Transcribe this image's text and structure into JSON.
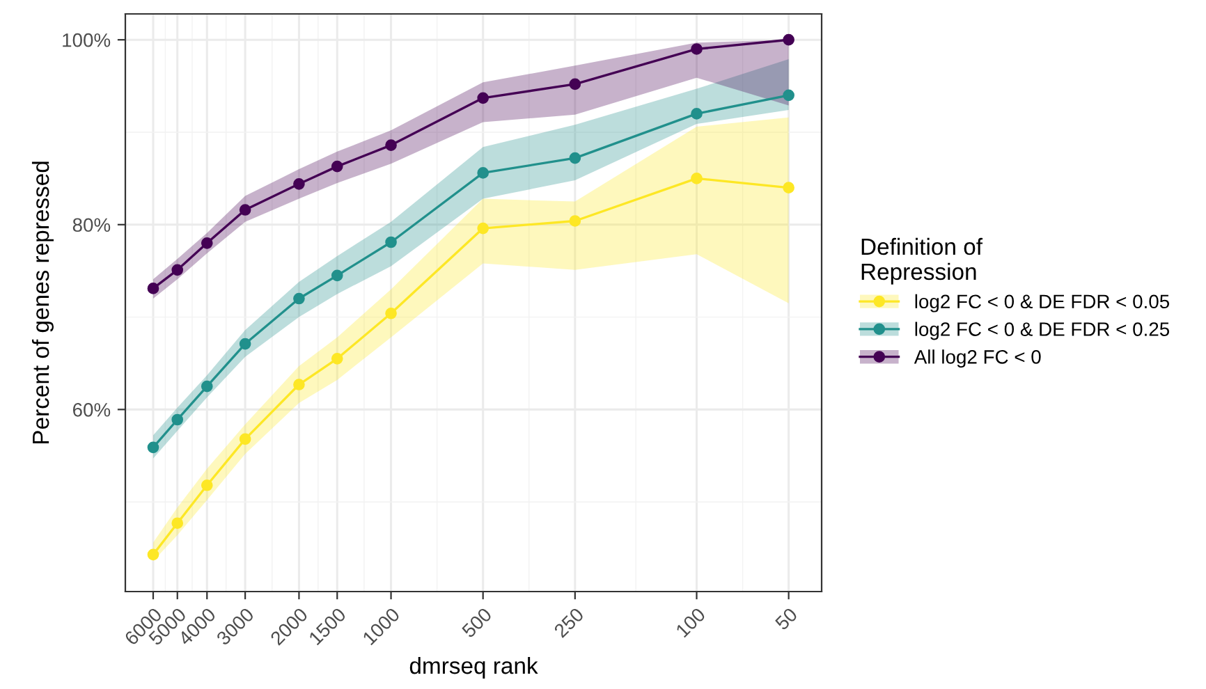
{
  "chart_data": {
    "type": "line",
    "xlabel": "dmrseq rank",
    "ylabel": "Percent of genes repressed",
    "legend_title": "Definition of\nRepression",
    "x": [
      6000,
      5000,
      4000,
      3000,
      2000,
      1500,
      1000,
      500,
      250,
      100,
      50
    ],
    "log": "x",
    "xlim": [
      7400,
      39
    ],
    "xticks": [
      6000,
      5000,
      4000,
      3000,
      2000,
      1500,
      1000,
      500,
      250,
      100,
      50
    ],
    "ylim": [
      40.3,
      102.8
    ],
    "yticks": [
      {
        "value": 60,
        "label": "60%"
      },
      {
        "value": 80,
        "label": "80%"
      },
      {
        "value": 100,
        "label": "100%"
      }
    ],
    "grid": true,
    "legend": "right",
    "marker": "circle",
    "series": [
      {
        "name": "log2 FC < 0 & DE FDR < 0.05",
        "color": "#fde725",
        "values": [
          44.3,
          47.7,
          51.8,
          56.8,
          62.7,
          65.5,
          70.4,
          79.6,
          80.4,
          85.0,
          84.0
        ],
        "upper": [
          45.6,
          49.4,
          53.6,
          58.4,
          64.7,
          67.8,
          73.0,
          82.8,
          82.5,
          90.6,
          91.6
        ],
        "lower": [
          43.6,
          46.4,
          50.2,
          55.2,
          60.7,
          63.2,
          67.8,
          75.8,
          75.1,
          76.8,
          71.5
        ]
      },
      {
        "name": "log2 FC < 0 & DE FDR < 0.25",
        "color": "#21908c",
        "values": [
          55.9,
          58.9,
          62.5,
          67.1,
          72.0,
          74.5,
          78.1,
          85.6,
          87.2,
          92.0,
          94.0
        ],
        "upper": [
          57.2,
          60.2,
          63.7,
          68.6,
          73.8,
          76.6,
          80.3,
          88.4,
          90.8,
          94.7,
          97.9
        ],
        "lower": [
          54.7,
          57.7,
          61.3,
          65.7,
          70.0,
          72.5,
          75.5,
          82.8,
          84.8,
          90.9,
          92.4
        ]
      },
      {
        "name": "All log2 FC < 0",
        "color": "#440154",
        "values": [
          73.1,
          75.1,
          78.0,
          81.6,
          84.4,
          86.3,
          88.6,
          93.7,
          95.2,
          99.0,
          100.0
        ],
        "upper": [
          74.1,
          76.3,
          79.1,
          83.1,
          86.0,
          87.9,
          90.2,
          95.4,
          97.2,
          99.7,
          100.0
        ],
        "lower": [
          72.0,
          74.1,
          76.9,
          80.3,
          82.8,
          84.5,
          86.6,
          91.1,
          91.9,
          95.9,
          92.9
        ]
      }
    ]
  }
}
